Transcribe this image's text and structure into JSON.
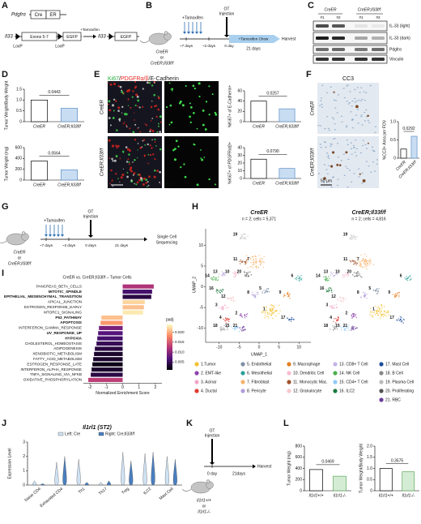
{
  "panel_labels": [
    "A",
    "B",
    "C",
    "D",
    "E",
    "F",
    "G",
    "H",
    "I",
    "J",
    "K",
    "L"
  ],
  "a": {
    "gene1": "Pdgfrα",
    "cre": "Cre",
    "er": "ER",
    "gene2": "Il33",
    "exons": "Exons 5-7",
    "egfp": "EGFP",
    "loxp": [
      "LoxP",
      "LoxP"
    ],
    "tamoxifen": "+Tamoxifen",
    "gene3": "Il33",
    "egfp2": "EGFP"
  },
  "b": {
    "tamoxifen": "+Tamoxifen",
    "ot": "OT",
    "injection": "Injection",
    "days": [
      "~7 days",
      "~2 days",
      "0 day"
    ],
    "chow": "+Tamoxifen Chow",
    "harvest": "Harvest",
    "duration": "21 days",
    "mice": [
      "CreER",
      "or",
      "CreER;Il33f/f"
    ]
  },
  "c": {
    "groups": [
      "CreER",
      "CreER;Il33f/f"
    ],
    "lanes": [
      "#1",
      "#2",
      "#1",
      "#2"
    ],
    "rows": [
      "IL-33 (light)",
      "IL-33 (dark)",
      "Pdgfrα",
      "Vinculin"
    ]
  },
  "e": {
    "stains": [
      "Ki67",
      "/",
      "PDGFRα/β",
      "/E-Cadherin"
    ],
    "stain_colors": [
      "#1fae3a",
      "#222222",
      "#e0261f",
      "#222222"
    ],
    "rows": [
      "CreER",
      "CreER;Il33f/f"
    ],
    "ki67": [
      "Ki67",
      "Ki67"
    ],
    "scale": "50 μm"
  },
  "f": {
    "title": "CC3",
    "rows": [
      "CreER",
      "CreER;Il33f/f"
    ],
    "scale": "50 μm"
  },
  "g": {
    "tamoxifen": "+Tamoxifen",
    "ot": "OT",
    "injection": "Injection",
    "days": [
      "~7 days",
      "~2 days",
      "0 days"
    ],
    "readout": [
      "Single Cell",
      "Sequencing"
    ],
    "duration": "21 days",
    "mice": [
      "CreER",
      "or",
      "CreER;Il33f/f"
    ]
  },
  "k": {
    "ot": "OT",
    "injection": "Injection",
    "day": "0 day",
    "harvest": "Harvest",
    "duration": "21days",
    "mice": [
      "Il1rl1+/+",
      "or",
      "Il1rl1-/-"
    ]
  },
  "chart_data": [
    {
      "type": "bar",
      "ylabel": "Tumor Weight/Body Weight",
      "categories": [
        "CreER",
        "CreER;Il33f/f"
      ],
      "values": [
        1.0,
        0.62
      ],
      "colors": [
        "#ffffff",
        "#c9ddf2"
      ],
      "edge_colors": [
        "#000000",
        "#5b8fc7"
      ],
      "ylim": [
        0,
        1.5
      ],
      "yticks": [
        0,
        0.5,
        {
          "value": 1,
          "label": "1.0"
        },
        1.5
      ],
      "annotation": "0.0443"
    },
    {
      "type": "bar",
      "ylabel": "Tumor Weight (mg)",
      "categories": [
        "CreER",
        "CreER;Il33f/f"
      ],
      "values": [
        350,
        190
      ],
      "colors": [
        "#ffffff",
        "#c9ddf2"
      ],
      "edge_colors": [
        "#000000",
        "#5b8fc7"
      ],
      "ylim": [
        0,
        600
      ],
      "yticks": [
        0,
        200,
        400,
        600
      ],
      "annotation": "0.0564"
    },
    {
      "type": "bar",
      "ylabel": "%Ki67+ of E-Cadherin+",
      "categories": [
        "CreER",
        "CreER;Il33f/f"
      ],
      "values": [
        40,
        25
      ],
      "colors": [
        "#ffffff",
        "#c9ddf2"
      ],
      "edge_colors": [
        "#000000",
        "#5b8fc7"
      ],
      "ylim": [
        0,
        60
      ],
      "yticks": [
        0,
        20,
        40,
        60
      ],
      "annotation": "0.0257"
    },
    {
      "type": "bar",
      "ylabel": "%Ki67+ of PDGFRα/β+",
      "categories": [
        "CreER",
        "CreER;Il33f/f"
      ],
      "values": [
        25,
        13
      ],
      "colors": [
        "#ffffff",
        "#c9ddf2"
      ],
      "edge_colors": [
        "#000000",
        "#5b8fc7"
      ],
      "ylim": [
        0,
        40
      ],
      "yticks": [
        0,
        10,
        20,
        30,
        40
      ],
      "annotation": "0.0790"
    },
    {
      "type": "bar",
      "ylabel": "%CC3+ Area per FOV",
      "categories": [
        "CreER",
        "CreER;Il33f/f"
      ],
      "values": [
        0.25,
        0.6
      ],
      "colors": [
        "#ffffff",
        "#c9ddf2"
      ],
      "edge_colors": [
        "#000000",
        "#5b8fc7"
      ],
      "ylim": [
        0,
        1.0
      ],
      "yticks": [
        0,
        0.5,
        {
          "value": 1,
          "label": "1.0"
        }
      ],
      "annotation": "0.0292"
    },
    {
      "type": "bar",
      "ylabel": "Tumor Weight (mg)",
      "categories": [
        "Il1rl1+/+",
        "Il1rl1-/-"
      ],
      "values": [
        380,
        260
      ],
      "colors": [
        "#ffffff",
        "#d5ecd4"
      ],
      "edge_colors": [
        "#000000",
        "#5aa85a"
      ],
      "ylim": [
        0,
        800
      ],
      "yticks": [
        0,
        200,
        400,
        600,
        800
      ],
      "annotation": "0.0469"
    },
    {
      "type": "bar",
      "ylabel": "Tumor Weight/Body Weight",
      "categories": [
        "Il1rl1+/+",
        "Il1rl1-/-"
      ],
      "values": [
        1.0,
        0.85
      ],
      "colors": [
        "#ffffff",
        "#d5ecd4"
      ],
      "edge_colors": [
        "#000000",
        "#5aa85a"
      ],
      "ylim": [
        0,
        2.0
      ],
      "yticks": [
        0,
        0.5,
        {
          "value": 1,
          "label": "1.0"
        },
        1.5,
        {
          "value": 2,
          "label": "2.0"
        }
      ],
      "annotation": "0.3575"
    },
    {
      "type": "hbar",
      "title": "CreER vs. CreER;Il33f/f – Tumor Cells",
      "xlabel": "Normalized Enrichment Score",
      "categories": [
        "PANCREAS_BETA_CELLS",
        "MITOTIC_SPINDLE",
        "EPITHELIAL_MESENCHYMAL_TRANSITION",
        "APICAL_JUNCTION",
        "ESTROGEN_RESPONSE_EARLY",
        "MTORC1_SIGNALING",
        "P53_PATHWAY",
        "APOPTOSIS",
        "INTERFERON_GAMMA_RESPONSE",
        "UV_RESPONSE_UP",
        "HYPOXIA",
        "CHOLESTEROL_HOMEOSTASIS",
        "ADIPOGENESIS",
        "XENOBIOTIC_METABOLISM",
        "FATTY_ACID_METABOLISM",
        "ESTROGEN_RESPONSE_LATE",
        "INTERFERON_ALPHA_RESPONSE",
        "TNFA_SIGNALING_VIA_NFKB",
        "OXIDATIVE_PHOSPHORYLATION"
      ],
      "values": [
        1.9,
        1.8,
        1.75,
        1.35,
        1.3,
        1.25,
        -1.3,
        -1.35,
        -1.45,
        -1.5,
        -1.55,
        -1.6,
        -1.7,
        -1.75,
        -1.8,
        -1.85,
        -1.9,
        -1.95,
        -2.1
      ],
      "padj": [
        0.012,
        0.006,
        0.004,
        0.022,
        0.021,
        0.023,
        0.021,
        0.019,
        0.009,
        0.007,
        0.006,
        0.005,
        0.004,
        0.003,
        0.003,
        0.002,
        0.003,
        0.004,
        0.013
      ],
      "bold": [
        1,
        2,
        6,
        7,
        9,
        10
      ],
      "xlim": [
        -2.4,
        2.4
      ],
      "xticks": [
        -2,
        -1,
        0,
        1,
        2
      ],
      "colorbar_title": "padj",
      "colorscale": [
        "#000004",
        "#51127c",
        "#b73779",
        "#fc8961",
        "#fcfdbf"
      ],
      "clim": [
        0.001,
        0.024
      ],
      "cticks": [
        0.005,
        {
          "value": 0.01,
          "label": "0.010"
        },
        0.015,
        {
          "value": 0.02,
          "label": "0.020"
        }
      ]
    },
    {
      "type": "scatter",
      "titles": [
        "CreER",
        "CreER;Il33f/f"
      ],
      "subtitles": [
        "n = 2; cells = 5,371",
        "n = 2; cells = 4,816"
      ],
      "xlabel": "UMAP_1",
      "ylabel": "UMAP_2",
      "xlim": [
        -13,
        13
      ],
      "ylim": [
        -13,
        14
      ],
      "xticks": [
        -10,
        -5,
        0,
        5,
        10
      ],
      "yticks": [
        -10,
        -5,
        0,
        5,
        10
      ],
      "series": [
        {
          "name": "1.Tumor",
          "label": "1",
          "color": "#f2c12e",
          "x": [
            3,
            3
          ],
          "y": [
            -6,
            -6
          ]
        },
        {
          "name": "2. EMT-like",
          "label": "2",
          "color": "#8e44ad",
          "x": [
            -4,
            -4
          ],
          "y": [
            -7,
            -7
          ]
        },
        {
          "name": "3. Acinar",
          "label": "3",
          "color": "#f4a6c8",
          "x": [
            -9,
            -9
          ],
          "y": [
            -5,
            -5
          ]
        },
        {
          "name": "4. Ductal",
          "label": "4",
          "color": "#e03c31",
          "x": [
            -8,
            -8
          ],
          "y": [
            -8,
            -8
          ]
        },
        {
          "name": "5. Endothelial",
          "label": "5",
          "color": "#7f8fa6",
          "x": [
            2,
            2
          ],
          "y": [
            -1,
            -1
          ]
        },
        {
          "name": "6. Mesothelial",
          "label": "6",
          "color": "#2aa198",
          "x": [
            10,
            10
          ],
          "y": [
            2,
            2
          ]
        },
        {
          "name": "7. Fibroblast",
          "label": "7",
          "color": "#f6b26b",
          "x": [
            -1,
            -1
          ],
          "y": [
            6,
            6
          ]
        },
        {
          "name": "8. Pericyte",
          "label": "8",
          "color": "#b39ddb",
          "x": [
            -1,
            -1
          ],
          "y": [
            -2,
            -2
          ]
        },
        {
          "name": "9. Macrophage",
          "label": "9",
          "color": "#e67e22",
          "x": [
            7,
            7
          ],
          "y": [
            -2,
            -2
          ]
        },
        {
          "name": "10. Dendritic Cell",
          "label": "10",
          "color": "#f8bbd0",
          "x": [
            -6,
            -6
          ],
          "y": [
            3,
            3
          ]
        },
        {
          "name": "11. Monocytic Mac.",
          "label": "11",
          "color": "#a0522d",
          "x": [
            -4,
            -4
          ],
          "y": [
            6,
            6
          ]
        },
        {
          "name": "12. Granulocyte",
          "label": "12",
          "color": "#f5c6cb",
          "x": [
            -7,
            -7
          ],
          "y": [
            -3,
            -3
          ]
        },
        {
          "name": "13. CD8+ T Cell",
          "label": "13",
          "color": "#c5b3e6",
          "x": [
            -9,
            -9
          ],
          "y": [
            3,
            3
          ]
        },
        {
          "name": "14. NK Cell",
          "label": "14",
          "color": "#4caf50",
          "x": [
            -11,
            -11
          ],
          "y": [
            2,
            2
          ]
        },
        {
          "name": "15. CD4+ T Cell",
          "label": "15",
          "color": "#90caf9",
          "x": [
            -6,
            -6
          ],
          "y": [
            -10,
            -10
          ]
        },
        {
          "name": "16. ILC2",
          "label": "16",
          "color": "#1b7a3d",
          "x": [
            -10,
            -10
          ],
          "y": [
            -1,
            -1
          ]
        },
        {
          "name": "17. Mast Cell",
          "label": "17",
          "color": "#1f4e9c",
          "x": [
            8,
            8
          ],
          "y": [
            -8,
            -8
          ]
        },
        {
          "name": "18. B Cell",
          "label": "18",
          "color": "#888888",
          "x": [
            -9,
            -9
          ],
          "y": [
            -10,
            -10
          ]
        },
        {
          "name": "19. Plasma Cell",
          "label": "19",
          "color": "#bbbbbb",
          "x": [
            -4,
            -4
          ],
          "y": [
            12,
            12
          ]
        },
        {
          "name": "20. Proliferating",
          "label": "20",
          "color": "#555555",
          "x": [
            -3,
            -3
          ],
          "y": [
            3,
            3
          ]
        },
        {
          "name": "21. RBC",
          "label": "21",
          "color": "#6a3d9a",
          "x": [
            -4,
            -4
          ],
          "y": [
            -10,
            -10
          ]
        }
      ]
    },
    {
      "type": "violin",
      "title": "Il1rl1 (ST2)",
      "ylabel": "Expression Level",
      "categories": [
        "Naive CD4",
        "Exhausted CD4",
        "Th1",
        "Th17",
        "Treg",
        "ILC2",
        "Mast Cell"
      ],
      "ylim": [
        0,
        3
      ],
      "yticks": [
        0,
        1,
        2,
        3
      ],
      "series": [
        {
          "name": "Left: Cre",
          "color": "#cfe2f3",
          "values": [
            0.3,
            1.6,
            1.8,
            0.2,
            2.3,
            2.2,
            2.0
          ]
        },
        {
          "name": "Right: Cre;Il33f/f",
          "color": "#4a7fbf",
          "values": [
            0.1,
            2.0,
            0.2,
            0.3,
            1.7,
            2.3,
            1.8
          ]
        }
      ]
    }
  ]
}
